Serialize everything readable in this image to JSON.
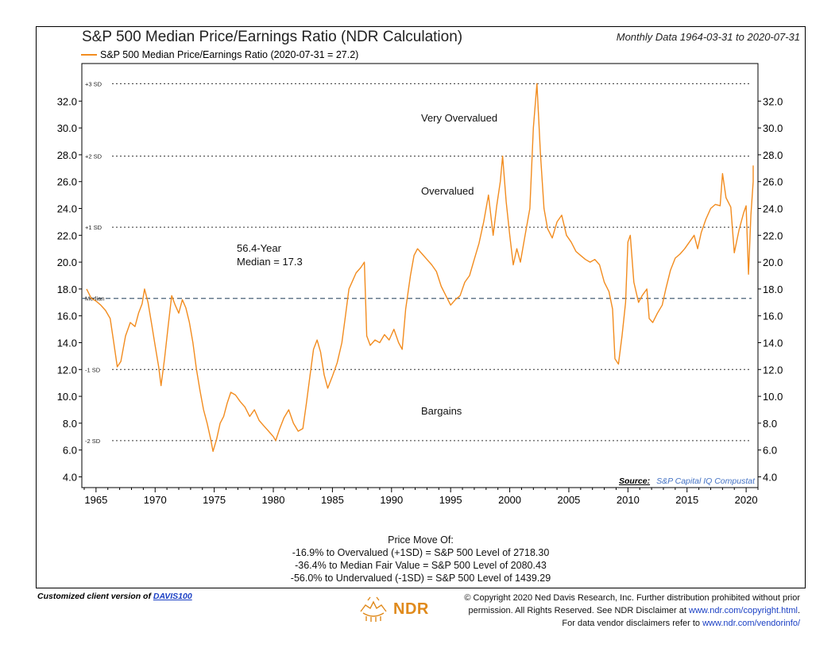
{
  "chart_data": {
    "type": "line",
    "title": "S&P 500 Median Price/Earnings Ratio (NDR Calculation)",
    "subtitle": "Monthly Data 1964-03-31 to 2020-07-31",
    "series": [
      {
        "name": "S&P 500 Median Price/Earnings Ratio (2020-07-31 = 27.2)",
        "color": "#f28c1f",
        "points": [
          [
            1964.2,
            18.0
          ],
          [
            1964.6,
            17.3
          ],
          [
            1965.0,
            17.1
          ],
          [
            1965.4,
            16.8
          ],
          [
            1965.8,
            16.4
          ],
          [
            1966.2,
            15.8
          ],
          [
            1966.5,
            14.0
          ],
          [
            1966.8,
            12.2
          ],
          [
            1967.1,
            12.6
          ],
          [
            1967.5,
            14.5
          ],
          [
            1967.9,
            15.5
          ],
          [
            1968.3,
            15.2
          ],
          [
            1968.6,
            16.2
          ],
          [
            1968.9,
            16.9
          ],
          [
            1969.1,
            18.0
          ],
          [
            1969.4,
            17.0
          ],
          [
            1969.7,
            15.4
          ],
          [
            1970.0,
            13.8
          ],
          [
            1970.3,
            12.2
          ],
          [
            1970.5,
            10.8
          ],
          [
            1970.8,
            12.8
          ],
          [
            1971.1,
            15.2
          ],
          [
            1971.4,
            17.5
          ],
          [
            1971.7,
            16.8
          ],
          [
            1972.0,
            16.2
          ],
          [
            1972.3,
            17.2
          ],
          [
            1972.6,
            16.6
          ],
          [
            1972.9,
            15.5
          ],
          [
            1973.2,
            14.0
          ],
          [
            1973.5,
            12.0
          ],
          [
            1973.8,
            10.4
          ],
          [
            1974.1,
            9.0
          ],
          [
            1974.4,
            8.0
          ],
          [
            1974.7,
            6.8
          ],
          [
            1974.9,
            5.9
          ],
          [
            1975.2,
            6.8
          ],
          [
            1975.5,
            8.0
          ],
          [
            1975.8,
            8.5
          ],
          [
            1976.1,
            9.5
          ],
          [
            1976.4,
            10.3
          ],
          [
            1976.8,
            10.1
          ],
          [
            1977.2,
            9.6
          ],
          [
            1977.6,
            9.2
          ],
          [
            1978.0,
            8.5
          ],
          [
            1978.4,
            9.0
          ],
          [
            1978.8,
            8.2
          ],
          [
            1979.2,
            7.8
          ],
          [
            1979.6,
            7.4
          ],
          [
            1980.0,
            7.0
          ],
          [
            1980.2,
            6.7
          ],
          [
            1980.5,
            7.5
          ],
          [
            1980.9,
            8.4
          ],
          [
            1981.3,
            9.0
          ],
          [
            1981.7,
            8.0
          ],
          [
            1982.1,
            7.4
          ],
          [
            1982.5,
            7.6
          ],
          [
            1982.8,
            9.5
          ],
          [
            1983.1,
            11.5
          ],
          [
            1983.4,
            13.5
          ],
          [
            1983.7,
            14.2
          ],
          [
            1984.0,
            13.3
          ],
          [
            1984.3,
            11.6
          ],
          [
            1984.6,
            10.6
          ],
          [
            1985.0,
            11.5
          ],
          [
            1985.4,
            12.5
          ],
          [
            1985.8,
            14.0
          ],
          [
            1986.1,
            16.0
          ],
          [
            1986.4,
            18.0
          ],
          [
            1986.7,
            18.6
          ],
          [
            1987.0,
            19.2
          ],
          [
            1987.4,
            19.6
          ],
          [
            1987.7,
            20.0
          ],
          [
            1987.9,
            14.5
          ],
          [
            1988.2,
            13.8
          ],
          [
            1988.6,
            14.2
          ],
          [
            1989.0,
            14.0
          ],
          [
            1989.4,
            14.6
          ],
          [
            1989.8,
            14.2
          ],
          [
            1990.2,
            15.0
          ],
          [
            1990.6,
            14.0
          ],
          [
            1990.9,
            13.5
          ],
          [
            1991.2,
            16.5
          ],
          [
            1991.6,
            19.0
          ],
          [
            1991.9,
            20.5
          ],
          [
            1992.2,
            21.0
          ],
          [
            1992.6,
            20.6
          ],
          [
            1993.0,
            20.2
          ],
          [
            1993.4,
            19.8
          ],
          [
            1993.8,
            19.3
          ],
          [
            1994.2,
            18.2
          ],
          [
            1994.6,
            17.5
          ],
          [
            1995.0,
            16.8
          ],
          [
            1995.4,
            17.2
          ],
          [
            1995.8,
            17.5
          ],
          [
            1996.2,
            18.5
          ],
          [
            1996.6,
            19.0
          ],
          [
            1997.0,
            20.2
          ],
          [
            1997.4,
            21.4
          ],
          [
            1997.8,
            23.0
          ],
          [
            1998.2,
            25.0
          ],
          [
            1998.6,
            22.0
          ],
          [
            1998.9,
            24.2
          ],
          [
            1999.2,
            26.0
          ],
          [
            1999.4,
            27.9
          ],
          [
            1999.7,
            24.5
          ],
          [
            2000.0,
            22.0
          ],
          [
            2000.3,
            19.8
          ],
          [
            2000.6,
            21.0
          ],
          [
            2000.9,
            20.0
          ],
          [
            2001.3,
            22.0
          ],
          [
            2001.7,
            24.0
          ],
          [
            2002.0,
            30.0
          ],
          [
            2002.3,
            33.3
          ],
          [
            2002.6,
            28.0
          ],
          [
            2002.9,
            24.0
          ],
          [
            2003.2,
            22.5
          ],
          [
            2003.6,
            21.8
          ],
          [
            2004.0,
            23.0
          ],
          [
            2004.4,
            23.5
          ],
          [
            2004.8,
            22.0
          ],
          [
            2005.2,
            21.5
          ],
          [
            2005.6,
            20.8
          ],
          [
            2006.0,
            20.5
          ],
          [
            2006.4,
            20.2
          ],
          [
            2006.8,
            20.0
          ],
          [
            2007.2,
            20.2
          ],
          [
            2007.6,
            19.8
          ],
          [
            2008.0,
            18.5
          ],
          [
            2008.4,
            17.8
          ],
          [
            2008.7,
            16.5
          ],
          [
            2008.9,
            12.8
          ],
          [
            2009.2,
            12.4
          ],
          [
            2009.5,
            14.5
          ],
          [
            2009.8,
            17.0
          ],
          [
            2010.0,
            21.5
          ],
          [
            2010.2,
            22.0
          ],
          [
            2010.5,
            18.5
          ],
          [
            2010.9,
            17.0
          ],
          [
            2011.2,
            17.5
          ],
          [
            2011.6,
            18.0
          ],
          [
            2011.8,
            15.8
          ],
          [
            2012.1,
            15.5
          ],
          [
            2012.5,
            16.2
          ],
          [
            2012.9,
            16.8
          ],
          [
            2013.2,
            18.0
          ],
          [
            2013.6,
            19.4
          ],
          [
            2014.0,
            20.3
          ],
          [
            2014.4,
            20.6
          ],
          [
            2014.8,
            21.0
          ],
          [
            2015.2,
            21.5
          ],
          [
            2015.6,
            22.0
          ],
          [
            2015.9,
            21.0
          ],
          [
            2016.2,
            22.2
          ],
          [
            2016.6,
            23.2
          ],
          [
            2017.0,
            24.0
          ],
          [
            2017.4,
            24.3
          ],
          [
            2017.8,
            24.2
          ],
          [
            2018.0,
            26.6
          ],
          [
            2018.3,
            24.8
          ],
          [
            2018.7,
            24.1
          ],
          [
            2019.0,
            20.7
          ],
          [
            2019.4,
            22.4
          ],
          [
            2019.8,
            23.7
          ],
          [
            2020.0,
            24.2
          ],
          [
            2020.2,
            19.1
          ],
          [
            2020.4,
            23.5
          ],
          [
            2020.6,
            26.0
          ],
          [
            2020.6,
            27.2
          ]
        ]
      }
    ],
    "x_ticks": [
      "1965",
      "1970",
      "1975",
      "1980",
      "1985",
      "1990",
      "1995",
      "2000",
      "2005",
      "2010",
      "2015",
      "2020"
    ],
    "xlim": [
      1963.8,
      2021.0
    ],
    "y_ticks": [
      "4.0",
      "6.0",
      "8.0",
      "10.0",
      "12.0",
      "14.0",
      "16.0",
      "18.0",
      "20.0",
      "22.0",
      "24.0",
      "26.0",
      "28.0",
      "30.0",
      "32.0"
    ],
    "ylim": [
      3.2,
      34.8
    ],
    "reference_lines": [
      {
        "label": "+3 SD",
        "value": 33.3,
        "style": "dotted",
        "color": "#333333"
      },
      {
        "label": "+2 SD",
        "value": 27.9,
        "style": "dotted",
        "color": "#333333"
      },
      {
        "label": "+1 SD",
        "value": 22.6,
        "style": "dotted",
        "color": "#333333"
      },
      {
        "label": "Median",
        "value": 17.3,
        "style": "dashed",
        "color": "#4a6178"
      },
      {
        "label": "-1 SD",
        "value": 12.0,
        "style": "dotted",
        "color": "#333333"
      },
      {
        "label": "-2 SD",
        "value": 6.7,
        "style": "dotted",
        "color": "#333333"
      }
    ],
    "annotations": {
      "very_overvalued": "Very Overvalued",
      "overvalued": "Overvalued",
      "bargains": "Bargains",
      "median_line1": "56.4-Year",
      "median_line2": "Median = 17.3"
    },
    "legend_position": "top-left",
    "grid": false
  },
  "source": {
    "label": "Source:",
    "value": "S&P Capital IQ Compustat"
  },
  "price_moves": {
    "heading": "Price Move Of:",
    "lines": [
      "-16.9% to Overvalued (+1SD) = S&P 500 Level of 2718.30",
      "-36.4% to Median Fair Value = S&P 500 Level of 2080.43",
      "-56.0% to Undervalued (-1SD) = S&P 500 Level of 1439.29"
    ]
  },
  "footer": {
    "client_prefix": "Customized client version of ",
    "client_link": "DAVIS100",
    "logo_text": "NDR",
    "copyright_line1": "© Copyright 2020 Ned Davis Research, Inc. Further distribution prohibited without prior",
    "copyright_line2_a": "permission. All Rights Reserved. See NDR Disclaimer at ",
    "copyright_line2_link": "www.ndr.com/copyright.html",
    "copyright_line2_b": ".",
    "copyright_line3_a": "For data vendor disclaimers refer to ",
    "copyright_line3_link": "www.ndr.com/vendorinfo/"
  }
}
